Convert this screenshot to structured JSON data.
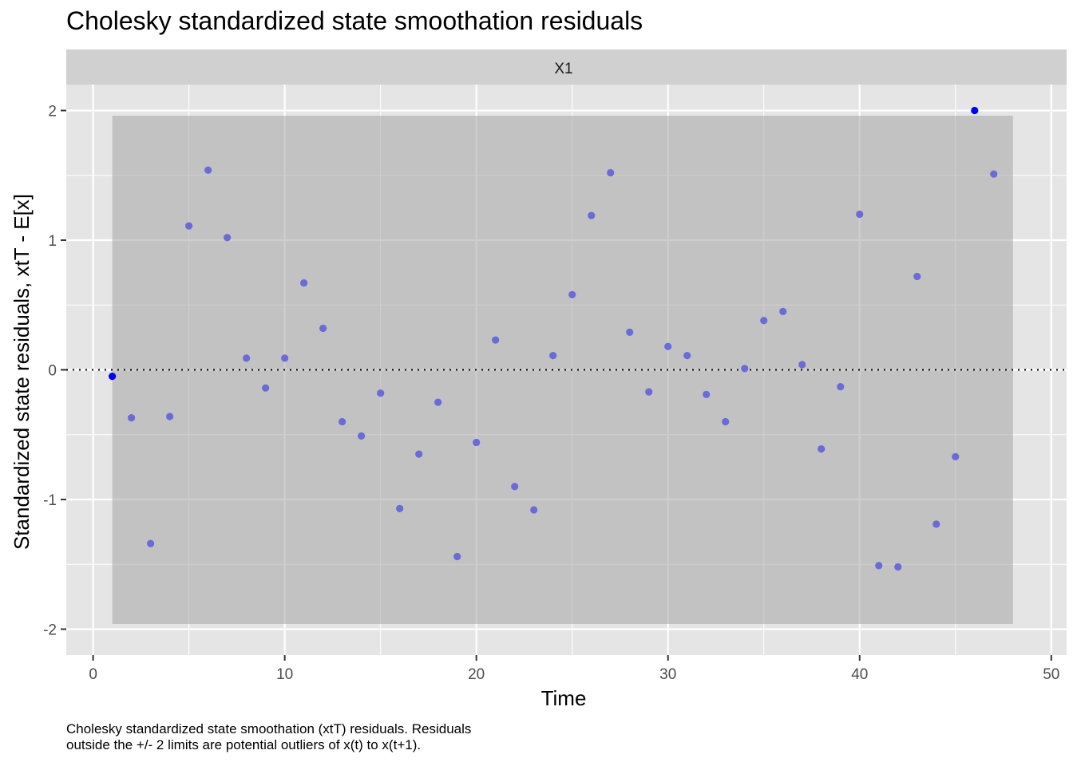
{
  "title": "Cholesky standardized state smoothation residuals",
  "caption": {
    "line1": "Cholesky standardized state smoothation (xtT) residuals. Residuals",
    "line2": "outside the +/- 2 limits are potential outliers of x(t) to x(t+1)."
  },
  "chart_data": {
    "type": "scatter",
    "title": "Cholesky standardized state smoothation residuals",
    "facet_label": "X1",
    "xlabel": "Time",
    "ylabel": "Standardized state residuals, xtT - E[x]",
    "xlim": [
      -1.4,
      50.8
    ],
    "ylim": [
      -2.2,
      2.2
    ],
    "x_ticks": [
      0,
      10,
      20,
      30,
      40,
      50
    ],
    "y_ticks": [
      -2,
      -1,
      0,
      1,
      2
    ],
    "x_tick_labels": [
      "0",
      "10",
      "20",
      "30",
      "40",
      "50"
    ],
    "y_tick_labels": [
      "-2",
      "-1",
      "0",
      "1",
      "2"
    ],
    "grid": true,
    "reference_line": {
      "y": 0,
      "style": "dotted"
    },
    "band": {
      "x_from": 1,
      "x_to": 48,
      "y_low": -1.96,
      "y_high": 1.96
    },
    "x": [
      1,
      2,
      3,
      4,
      5,
      6,
      7,
      8,
      9,
      10,
      11,
      12,
      13,
      14,
      15,
      16,
      17,
      18,
      19,
      20,
      21,
      22,
      23,
      24,
      25,
      26,
      27,
      28,
      29,
      30,
      31,
      32,
      33,
      34,
      35,
      36,
      37,
      38,
      39,
      40,
      41,
      42,
      43,
      44,
      45,
      46,
      47
    ],
    "values": [
      -0.05,
      -0.37,
      -1.34,
      -0.36,
      1.11,
      1.54,
      1.02,
      0.09,
      -0.14,
      0.09,
      0.67,
      0.32,
      -0.4,
      -0.51,
      -0.18,
      -1.07,
      -0.65,
      -0.25,
      -1.44,
      -0.56,
      0.23,
      -0.9,
      -1.08,
      0.11,
      0.58,
      1.19,
      1.52,
      0.29,
      -0.17,
      0.18,
      0.11,
      -0.19,
      -0.4,
      0.01,
      0.38,
      0.45,
      0.04,
      -0.61,
      -0.13,
      1.2,
      -1.51,
      -1.52,
      0.72,
      -1.19,
      -0.67,
      2.0,
      1.51
    ],
    "point_color": "#6a6ad8",
    "highlight_color": "#0000ff",
    "highlight_x": [
      1,
      46
    ]
  }
}
